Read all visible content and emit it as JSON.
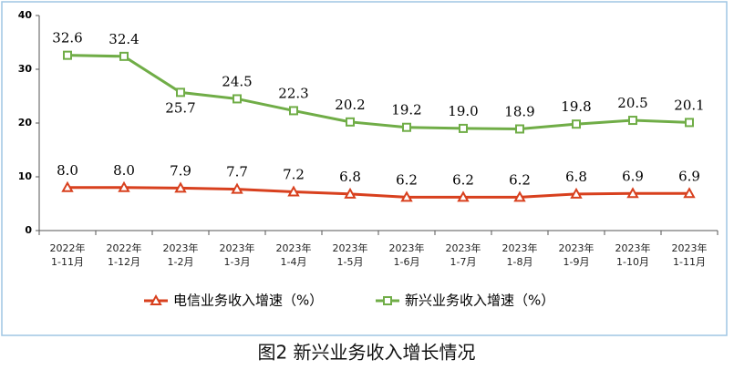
{
  "chart_data": {
    "type": "line",
    "title": "图2 新兴业务收入增长情况",
    "categories": [
      "2022年\n1-11月",
      "2022年\n1-12月",
      "2023年\n1-2月",
      "2023年\n1-3月",
      "2023年\n1-4月",
      "2023年\n1-5月",
      "2023年\n1-6月",
      "2023年\n1-7月",
      "2023年\n1-8月",
      "2023年\n1-9月",
      "2023年\n1-10月",
      "2023年\n1-11月"
    ],
    "series": [
      {
        "name": "电信业务收入增速（%）",
        "color": "#d8401e",
        "marker": "triangle",
        "values": [
          8.0,
          8.0,
          7.9,
          7.7,
          7.2,
          6.8,
          6.2,
          6.2,
          6.2,
          6.8,
          6.9,
          6.9
        ],
        "value_labels": [
          "8.0",
          "8.0",
          "7.9",
          "7.7",
          "7.2",
          "6.8",
          "6.2",
          "6.2",
          "6.2",
          "6.8",
          "6.9",
          "6.9"
        ]
      },
      {
        "name": "新兴业务收入增速（%）",
        "color": "#70ad47",
        "marker": "square",
        "values": [
          32.6,
          32.4,
          25.7,
          24.5,
          22.3,
          20.2,
          19.2,
          19.0,
          18.9,
          19.8,
          20.5,
          20.1
        ],
        "value_labels": [
          "32.6",
          "32.4",
          "25.7",
          "24.5",
          "22.3",
          "20.2",
          "19.2",
          "19.0",
          "18.9",
          "19.8",
          "20.5",
          "20.1"
        ]
      }
    ],
    "ylim": [
      0,
      40
    ],
    "yticks": [
      0,
      10,
      20,
      30,
      40
    ],
    "grid": false,
    "legend": "bottom"
  }
}
